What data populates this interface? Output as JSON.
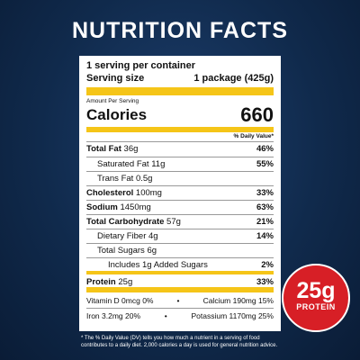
{
  "title": "NUTRITION FACTS",
  "label": {
    "servings": "1 serving per container",
    "serving_size": {
      "label": "Serving size",
      "value": "1 package (425g)"
    },
    "amount_per_serving": "Amount Per Serving",
    "calories": {
      "label": "Calories",
      "value": "660"
    },
    "daily_value_header": "% Daily Value*",
    "nutrients": [
      {
        "name": "Total Fat",
        "amount": "36g",
        "dv": "46%"
      },
      {
        "name": "Saturated Fat",
        "amount": "11g",
        "dv": "55%"
      },
      {
        "name": "Trans Fat",
        "amount": "0.5g"
      },
      {
        "name": "Cholesterol",
        "amount": "100mg",
        "dv": "33%"
      },
      {
        "name": "Sodium",
        "amount": "1450mg",
        "dv": "63%"
      },
      {
        "name": "Total Carbohydrate",
        "amount": "57g",
        "dv": "21%"
      },
      {
        "name": "Dietary Fiber",
        "amount": "4g",
        "dv": "14%"
      },
      {
        "name": "Total Sugars",
        "amount": "6g"
      },
      {
        "name": "Includes 1g Added Sugars",
        "dv": "2%"
      },
      {
        "name": "Protein",
        "amount": "25g",
        "dv": "33%"
      }
    ],
    "vitamins": [
      [
        "Vitamin D 0mcg 0%",
        "Calcium 190mg 15%"
      ],
      [
        "Iron 3.2mg 20%",
        "Potassium 1170mg 25%"
      ]
    ]
  },
  "footnote": "* The % Daily Value (DV) tells you how much a nutrient in a serving of food contributes to a daily diet. 2,000 calories a day is used for general nutrition advice.",
  "badge": {
    "amount": "25g",
    "label": "PROTEIN"
  }
}
